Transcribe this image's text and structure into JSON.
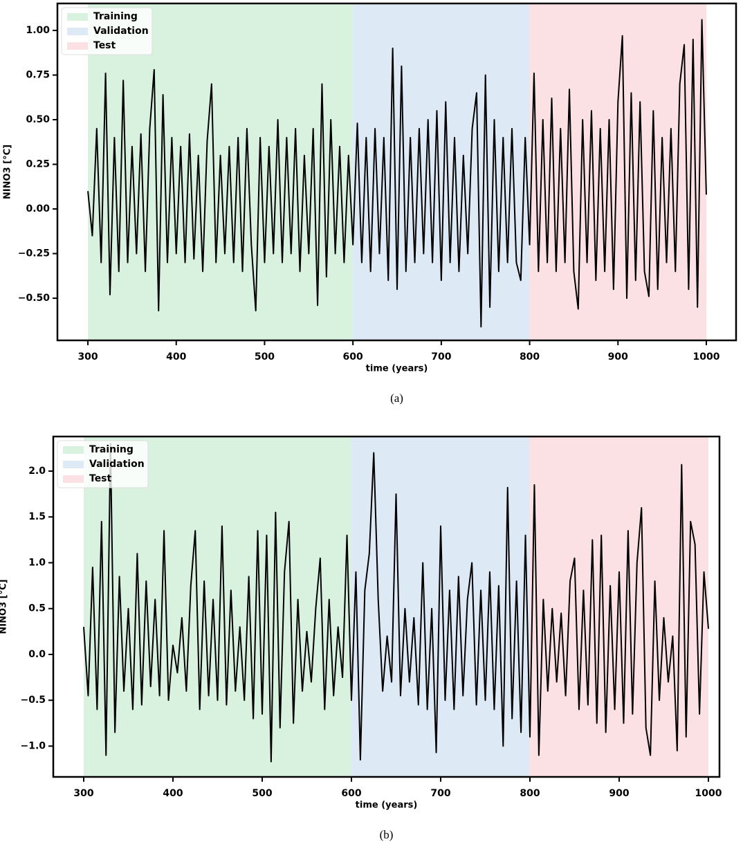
{
  "chart_data": [
    {
      "type": "line",
      "caption": "(a)",
      "xlabel": "time (years)",
      "ylabel": "NINO3 [°C]",
      "xlim": [
        265.5,
        1033.7
      ],
      "ylim": [
        -0.736,
        1.151
      ],
      "xticks": [
        300,
        400,
        500,
        600,
        700,
        800,
        900,
        1000
      ],
      "yticks": [
        {
          "value": -0.5,
          "label": "−0.50"
        },
        {
          "value": -0.25,
          "label": "−0.25"
        },
        {
          "value": 0,
          "label": "0.00"
        },
        {
          "value": 0.25,
          "label": "0.25"
        },
        {
          "value": 0.5,
          "label": "0.50"
        },
        {
          "value": 0.75,
          "label": "0.75"
        },
        {
          "value": 1,
          "label": "1.00"
        }
      ],
      "spans": [
        {
          "name": "Training",
          "start": 300,
          "end": 600,
          "color": "#d9f2df"
        },
        {
          "name": "Validation",
          "start": 600,
          "end": 800,
          "color": "#dde9f5"
        },
        {
          "name": "Test",
          "start": 800,
          "end": 1000,
          "color": "#fbe1e4"
        }
      ],
      "legend": "upper left",
      "color": "#000000",
      "x": [
        300,
        305,
        310,
        315,
        320,
        325,
        330,
        335,
        340,
        345,
        350,
        355,
        360,
        365,
        370,
        375,
        380,
        385,
        390,
        395,
        400,
        405,
        410,
        415,
        420,
        425,
        430,
        435,
        440,
        445,
        450,
        455,
        460,
        465,
        470,
        475,
        480,
        485,
        490,
        495,
        500,
        505,
        510,
        515,
        520,
        525,
        530,
        535,
        540,
        545,
        550,
        555,
        560,
        565,
        570,
        575,
        580,
        585,
        590,
        595,
        600,
        605,
        610,
        615,
        620,
        625,
        630,
        635,
        640,
        645,
        650,
        655,
        660,
        665,
        670,
        675,
        680,
        685,
        690,
        695,
        700,
        705,
        710,
        715,
        720,
        725,
        730,
        735,
        740,
        745,
        750,
        755,
        760,
        765,
        770,
        775,
        780,
        785,
        790,
        795,
        800,
        805,
        810,
        815,
        820,
        825,
        830,
        835,
        840,
        845,
        850,
        855,
        860,
        865,
        870,
        875,
        880,
        885,
        890,
        895,
        900,
        905,
        910,
        915,
        920,
        925,
        930,
        935,
        940,
        945,
        950,
        955,
        960,
        965,
        970,
        975,
        980,
        985,
        990,
        995,
        1000
      ],
      "values": [
        0.1,
        -0.15,
        0.45,
        -0.3,
        0.76,
        -0.48,
        0.4,
        -0.35,
        0.72,
        -0.3,
        0.35,
        -0.25,
        0.42,
        -0.35,
        0.45,
        0.78,
        -0.57,
        0.64,
        -0.3,
        0.4,
        -0.25,
        0.35,
        -0.3,
        0.42,
        -0.28,
        0.3,
        -0.35,
        0.38,
        0.7,
        -0.3,
        0.3,
        -0.25,
        0.35,
        -0.3,
        0.4,
        -0.35,
        0.45,
        -0.2,
        -0.57,
        0.4,
        -0.3,
        0.35,
        -0.25,
        0.5,
        -0.3,
        0.4,
        -0.25,
        0.45,
        -0.35,
        0.3,
        -0.25,
        0.45,
        -0.54,
        0.7,
        -0.38,
        0.5,
        -0.25,
        0.35,
        -0.3,
        0.3,
        -0.2,
        0.48,
        -0.3,
        0.4,
        -0.35,
        0.45,
        -0.25,
        0.4,
        -0.4,
        0.9,
        -0.45,
        0.8,
        -0.35,
        0.4,
        -0.3,
        0.45,
        -0.25,
        0.5,
        -0.3,
        0.55,
        -0.4,
        0.6,
        -0.3,
        0.4,
        -0.35,
        0.3,
        -0.25,
        0.45,
        0.65,
        -0.66,
        0.75,
        -0.55,
        0.5,
        -0.35,
        0.4,
        -0.3,
        0.45,
        -0.3,
        -0.4,
        0.4,
        -0.2,
        0.76,
        -0.35,
        0.5,
        -0.3,
        0.62,
        -0.35,
        0.45,
        -0.3,
        0.67,
        -0.35,
        -0.56,
        0.5,
        -0.3,
        0.55,
        -0.4,
        0.45,
        -0.35,
        0.5,
        -0.45,
        0.6,
        0.97,
        -0.5,
        0.65,
        -0.4,
        0.6,
        -0.35,
        -0.49,
        0.55,
        -0.45,
        0.4,
        -0.3,
        0.45,
        -0.35,
        0.7,
        0.92,
        -0.45,
        0.95,
        -0.55,
        1.06,
        0.08
      ]
    },
    {
      "type": "line",
      "caption": "(b)",
      "xlabel": "time (years)",
      "ylabel": "NINO3 [°C]",
      "xlim": [
        265.9,
        1012.4
      ],
      "ylim": [
        -1.336,
        2.377
      ],
      "xticks": [
        300,
        400,
        500,
        600,
        700,
        800,
        900,
        1000
      ],
      "yticks": [
        {
          "value": -1,
          "label": "−1.0"
        },
        {
          "value": -0.5,
          "label": "−0.5"
        },
        {
          "value": 0,
          "label": "0.0"
        },
        {
          "value": 0.5,
          "label": "0.5"
        },
        {
          "value": 1,
          "label": "1.0"
        },
        {
          "value": 1.5,
          "label": "1.5"
        },
        {
          "value": 2,
          "label": "2.0"
        }
      ],
      "spans": [
        {
          "name": "Training",
          "start": 300,
          "end": 600,
          "color": "#d9f2df"
        },
        {
          "name": "Validation",
          "start": 600,
          "end": 800,
          "color": "#dde9f5"
        },
        {
          "name": "Test",
          "start": 800,
          "end": 1000,
          "color": "#fbe1e4"
        }
      ],
      "legend": "upper left",
      "color": "#000000",
      "x": [
        300,
        305,
        310,
        315,
        320,
        325,
        330,
        335,
        340,
        345,
        350,
        355,
        360,
        365,
        370,
        375,
        380,
        385,
        390,
        395,
        400,
        405,
        410,
        415,
        420,
        425,
        430,
        435,
        440,
        445,
        450,
        455,
        460,
        465,
        470,
        475,
        480,
        485,
        490,
        495,
        500,
        505,
        510,
        515,
        520,
        525,
        530,
        535,
        540,
        545,
        550,
        555,
        560,
        565,
        570,
        575,
        580,
        585,
        590,
        595,
        600,
        605,
        610,
        615,
        620,
        625,
        630,
        635,
        640,
        645,
        650,
        655,
        660,
        665,
        670,
        675,
        680,
        685,
        690,
        695,
        700,
        705,
        710,
        715,
        720,
        725,
        730,
        735,
        740,
        745,
        750,
        755,
        760,
        765,
        770,
        775,
        780,
        785,
        790,
        795,
        800,
        805,
        810,
        815,
        820,
        825,
        830,
        835,
        840,
        845,
        850,
        855,
        860,
        865,
        870,
        875,
        880,
        885,
        890,
        895,
        900,
        905,
        910,
        915,
        920,
        925,
        930,
        935,
        940,
        945,
        950,
        955,
        960,
        965,
        970,
        975,
        980,
        985,
        990,
        995,
        1000
      ],
      "values": [
        0.3,
        -0.45,
        0.95,
        -0.6,
        1.45,
        -1.1,
        2.3,
        -0.85,
        0.85,
        -0.4,
        0.5,
        -0.6,
        1.1,
        -0.55,
        0.8,
        -0.35,
        0.6,
        -0.45,
        1.35,
        -0.5,
        0.1,
        -0.2,
        0.4,
        -0.4,
        0.75,
        1.35,
        -0.6,
        0.8,
        -0.45,
        0.6,
        -0.5,
        1.4,
        -0.55,
        0.7,
        -0.4,
        0.3,
        -0.5,
        0.85,
        -0.7,
        1.35,
        -0.65,
        1.3,
        -1.17,
        1.55,
        -0.8,
        0.9,
        1.45,
        -0.75,
        0.6,
        -0.4,
        0.25,
        -0.3,
        0.5,
        1.05,
        -0.6,
        0.6,
        -0.45,
        0.3,
        -0.25,
        1.3,
        -0.5,
        0.9,
        -1.15,
        0.7,
        1.1,
        2.2,
        0.6,
        -0.4,
        0.2,
        -0.3,
        1.75,
        -0.45,
        0.5,
        -0.3,
        0.4,
        -0.55,
        1.0,
        -0.6,
        0.5,
        -1.07,
        1.4,
        -0.5,
        0.7,
        -0.6,
        0.85,
        -0.45,
        0.6,
        1.0,
        -0.55,
        0.7,
        -0.5,
        0.9,
        -0.6,
        0.75,
        -1.0,
        1.82,
        -0.7,
        0.8,
        -0.85,
        1.3,
        -0.9,
        1.85,
        -1.1,
        0.6,
        -0.4,
        0.5,
        -0.3,
        0.45,
        -0.45,
        0.8,
        1.05,
        -0.6,
        0.7,
        -0.55,
        1.25,
        -0.75,
        1.3,
        -0.85,
        0.75,
        -0.6,
        0.9,
        -0.75,
        1.35,
        -0.65,
        1.0,
        1.6,
        -0.8,
        -1.1,
        0.8,
        -0.5,
        0.4,
        -0.3,
        0.2,
        -1.05,
        2.07,
        -0.9,
        1.45,
        1.2,
        -0.65,
        0.9,
        0.28
      ]
    }
  ]
}
